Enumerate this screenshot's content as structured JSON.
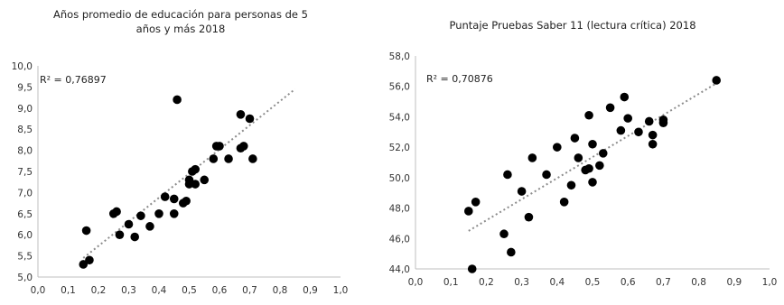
{
  "chart_data": [
    {
      "type": "scatter",
      "title_lines": [
        "Años promedio de educación para  personas de 5",
        "años y más 2018"
      ],
      "annotation": "R² = 0,76897",
      "xlim": [
        0.0,
        1.0
      ],
      "ylim": [
        5.0,
        10.0
      ],
      "x_ticks": [
        "0,0",
        "0,1",
        "0,2",
        "0,3",
        "0,4",
        "0,5",
        "0,6",
        "0,7",
        "0,8",
        "0,9",
        "1,0"
      ],
      "y_ticks": [
        "5,0",
        "5,5",
        "6,0",
        "6,5",
        "7,0",
        "7,5",
        "8,0",
        "8,5",
        "9,0",
        "9,5",
        "10,0"
      ],
      "trendline": {
        "style": "dotted",
        "x": [
          0.15,
          0.85
        ],
        "y": [
          5.45,
          9.45
        ]
      },
      "x": [
        0.15,
        0.16,
        0.17,
        0.25,
        0.26,
        0.27,
        0.3,
        0.32,
        0.34,
        0.37,
        0.4,
        0.42,
        0.45,
        0.45,
        0.46,
        0.48,
        0.49,
        0.5,
        0.5,
        0.51,
        0.52,
        0.52,
        0.55,
        0.58,
        0.59,
        0.6,
        0.63,
        0.67,
        0.67,
        0.68,
        0.7,
        0.71
      ],
      "y": [
        5.3,
        6.1,
        5.4,
        6.5,
        6.55,
        6.0,
        6.25,
        5.95,
        6.45,
        6.2,
        6.5,
        6.9,
        6.5,
        6.85,
        9.2,
        6.75,
        6.8,
        7.2,
        7.3,
        7.5,
        7.2,
        7.55,
        7.3,
        7.8,
        8.1,
        8.1,
        7.8,
        8.05,
        8.85,
        8.1,
        8.75,
        7.8
      ]
    },
    {
      "type": "scatter",
      "title_lines": [
        "Puntaje Pruebas Saber 11 (lectura crítica) 2018"
      ],
      "annotation": "R² = 0,70876",
      "xlim": [
        0.0,
        1.0
      ],
      "ylim": [
        44.0,
        58.0
      ],
      "x_ticks": [
        "0,0",
        "0,1",
        "0,2",
        "0,3",
        "0,4",
        "0,5",
        "0,6",
        "0,7",
        "0,8",
        "0,9",
        "1,0"
      ],
      "y_ticks": [
        "44,0",
        "46,0",
        "48,0",
        "50,0",
        "52,0",
        "54,0",
        "56,0",
        "58,0"
      ],
      "trendline": {
        "style": "dotted",
        "x": [
          0.15,
          0.85
        ],
        "y": [
          46.5,
          56.2
        ]
      },
      "x": [
        0.15,
        0.16,
        0.17,
        0.25,
        0.26,
        0.27,
        0.3,
        0.32,
        0.33,
        0.37,
        0.4,
        0.42,
        0.44,
        0.45,
        0.46,
        0.48,
        0.49,
        0.49,
        0.5,
        0.5,
        0.52,
        0.53,
        0.55,
        0.58,
        0.59,
        0.6,
        0.63,
        0.66,
        0.67,
        0.67,
        0.7,
        0.7,
        0.85
      ],
      "y": [
        47.8,
        44.0,
        48.4,
        46.3,
        50.2,
        45.1,
        49.1,
        47.4,
        51.3,
        50.2,
        52.0,
        48.4,
        49.5,
        52.6,
        51.3,
        50.5,
        50.6,
        54.1,
        49.7,
        52.2,
        50.8,
        51.6,
        54.6,
        53.1,
        55.3,
        53.9,
        53.0,
        53.7,
        52.2,
        52.8,
        53.6,
        53.8,
        56.4
      ]
    }
  ]
}
